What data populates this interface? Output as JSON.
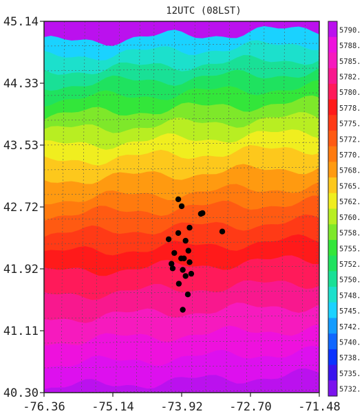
{
  "chart_data": {
    "type": "heatmap",
    "title": "12UTC (08LST)",
    "xlabel": "",
    "ylabel": "",
    "xlim": [
      -76.36,
      -71.48
    ],
    "ylim": [
      40.3,
      45.14
    ],
    "x_ticks": [
      "-76.36",
      "-75.14",
      "-73.92",
      "-72.70",
      "-71.48"
    ],
    "y_ticks": [
      "45.14",
      "44.33",
      "43.53",
      "42.72",
      "41.92",
      "41.11",
      "40.30"
    ],
    "grid": true,
    "colorbar": {
      "placement": "right",
      "labels": [
        "5790.",
        "5788.",
        "5785.",
        "5782.",
        "5780.",
        "5778.",
        "5775.",
        "5772.",
        "5770.",
        "5768.",
        "5765.",
        "5762.",
        "5760.",
        "5758.",
        "5755.",
        "5752.",
        "5750.",
        "5748.",
        "5745.",
        "5742.",
        "5740.",
        "5738.",
        "5735.",
        "5732."
      ],
      "colors": [
        "#bb11ee",
        "#ee11dd",
        "#f61abe",
        "#f8188e",
        "#ff1a5a",
        "#ff1a1a",
        "#ff3a16",
        "#ff5a12",
        "#ff7a0e",
        "#ff9a10",
        "#fdc81c",
        "#f0ee1f",
        "#b8ee22",
        "#7ee82a",
        "#33e63a",
        "#1fe25f",
        "#19e096",
        "#1ce0cc",
        "#1ad2ff",
        "#139cff",
        "#0f66ff",
        "#0b33ff",
        "#3a14ee",
        "#7b13ee"
      ]
    },
    "contour_field": {
      "contour_lats": [
        45.14,
        44.95,
        44.76,
        44.57,
        44.39,
        44.2,
        44.0,
        43.8,
        43.6,
        43.4,
        43.15,
        42.9,
        42.7,
        42.45,
        42.2,
        41.95,
        41.65,
        41.35,
        41.05,
        40.75,
        40.45
      ],
      "fill_colors": [
        "#bb11ee",
        "#1ad2ff",
        "#1ce0cc",
        "#19e096",
        "#1fe25f",
        "#33e63a",
        "#7ee82a",
        "#b8ee22",
        "#f0ee1f",
        "#fdc81c",
        "#ff9a10",
        "#ff7a0e",
        "#ff5a12",
        "#ff3a16",
        "#ff1a1a",
        "#ff1a5a",
        "#f8188e",
        "#f61abe",
        "#ee11dd",
        "#dd10ee",
        "#bb11ee"
      ]
    },
    "series": [
      {
        "points": [
          [
            -73.98,
            42.82
          ],
          [
            -73.92,
            42.73
          ],
          [
            -73.55,
            42.64
          ],
          [
            -73.58,
            42.63
          ],
          [
            -73.78,
            42.45
          ],
          [
            -73.2,
            42.4
          ],
          [
            -73.98,
            42.38
          ],
          [
            -74.15,
            42.3
          ],
          [
            -73.85,
            42.28
          ],
          [
            -73.8,
            42.15
          ],
          [
            -74.05,
            42.12
          ],
          [
            -73.88,
            42.05
          ],
          [
            -73.93,
            42.05
          ],
          [
            -73.78,
            42.0
          ],
          [
            -74.1,
            41.98
          ],
          [
            -74.08,
            41.92
          ],
          [
            -73.9,
            41.9
          ],
          [
            -73.75,
            41.85
          ],
          [
            -73.85,
            41.82
          ],
          [
            -73.97,
            41.72
          ],
          [
            -73.81,
            41.58
          ],
          [
            -73.9,
            41.38
          ]
        ]
      }
    ]
  }
}
